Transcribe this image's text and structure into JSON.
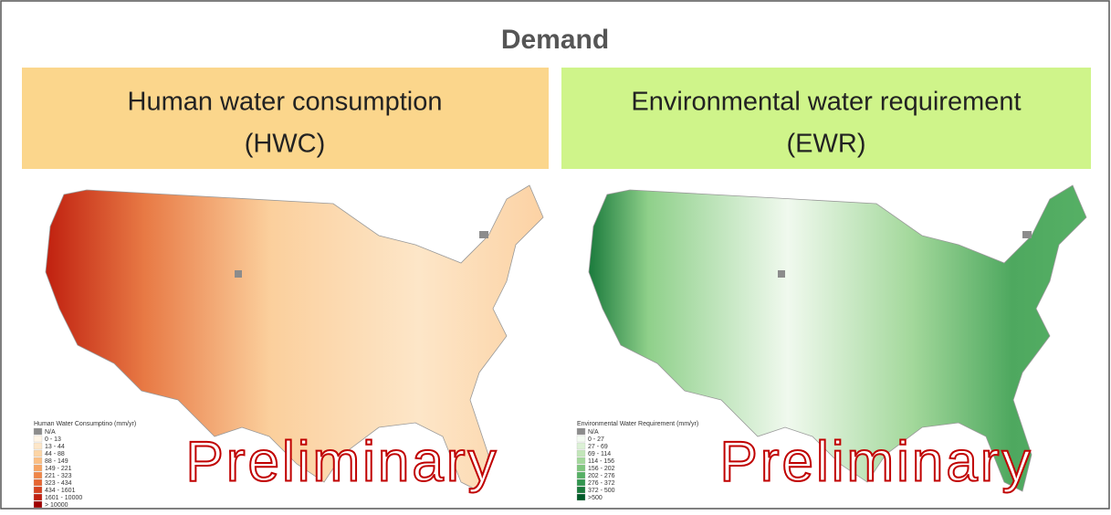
{
  "title": "Demand",
  "panels": [
    {
      "heading": [
        "Human water consumption",
        "(HWC)"
      ],
      "legend": {
        "title": "Human Water Consumptino (mm/yr)",
        "items": [
          {
            "label": "N/A",
            "color": "#8c8c8c"
          },
          {
            "label": "0 - 13",
            "color": "#fff5e6"
          },
          {
            "label": "13 - 44",
            "color": "#fde6c8"
          },
          {
            "label": "44 - 88",
            "color": "#fcd5a6"
          },
          {
            "label": "88 - 149",
            "color": "#fbbf84"
          },
          {
            "label": "149 - 221",
            "color": "#f7a463"
          },
          {
            "label": "221 - 323",
            "color": "#f08648"
          },
          {
            "label": "323 - 434",
            "color": "#e66632"
          },
          {
            "label": "434 - 1601",
            "color": "#d6421f"
          },
          {
            "label": "1601 - 10000",
            "color": "#c02010"
          },
          {
            "label": "> 10000",
            "color": "#a00000"
          }
        ]
      },
      "watermark": "Preliminary"
    },
    {
      "heading": [
        "Environmental water requirement",
        "(EWR)"
      ],
      "legend": {
        "title": "Environmental Water Requirement (mm/yr)",
        "items": [
          {
            "label": "N/A",
            "color": "#8c8c8c"
          },
          {
            "label": "0 - 27",
            "color": "#f4fbf2"
          },
          {
            "label": "27 - 69",
            "color": "#dcf1d6"
          },
          {
            "label": "69 - 114",
            "color": "#c2e6b9"
          },
          {
            "label": "114 - 156",
            "color": "#a3d89b"
          },
          {
            "label": "156 - 202",
            "color": "#7fc67e"
          },
          {
            "label": "202 - 276",
            "color": "#56b065"
          },
          {
            "label": "276 - 372",
            "color": "#329650"
          },
          {
            "label": "372 - 500",
            "color": "#1a7a3c"
          },
          {
            "label": ">500",
            "color": "#005a28"
          }
        ]
      },
      "watermark": "Preliminary"
    }
  ]
}
